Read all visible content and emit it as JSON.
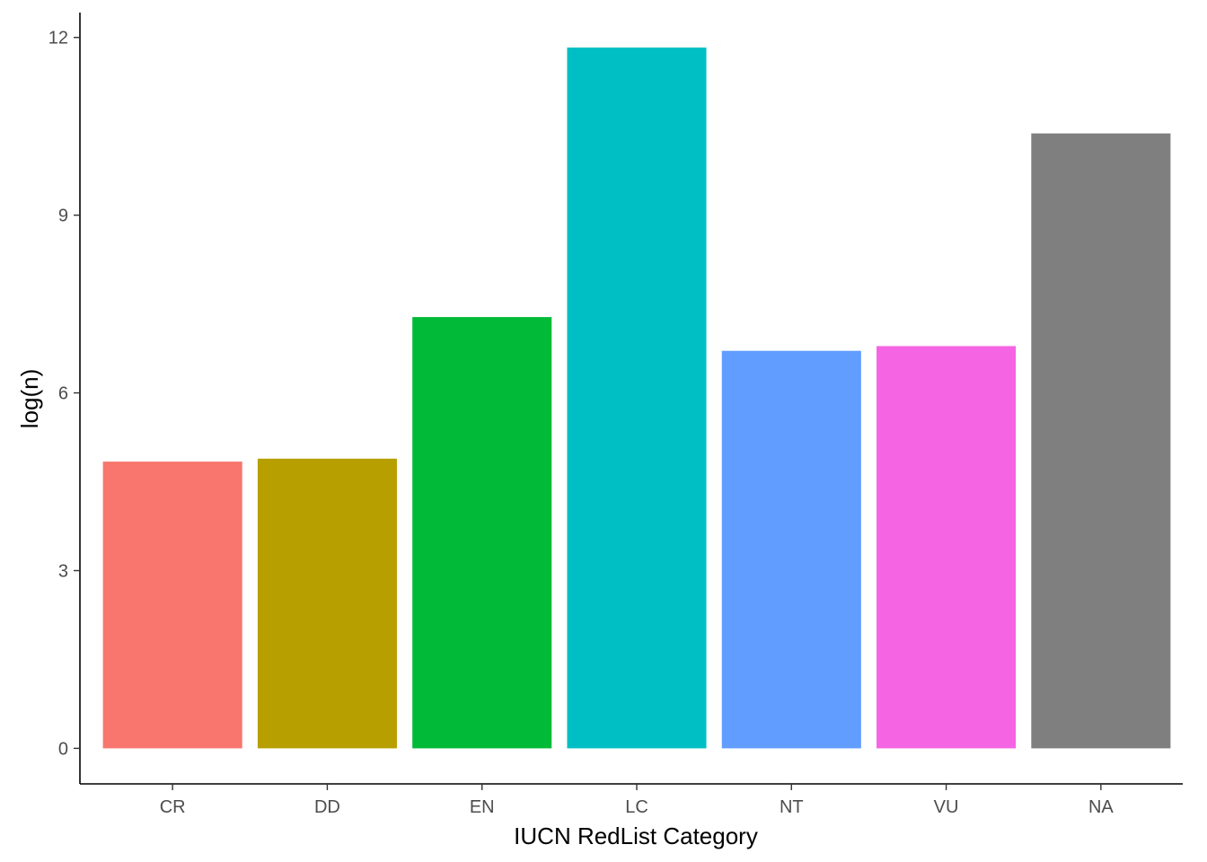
{
  "chart_data": {
    "type": "bar",
    "categories": [
      "CR",
      "DD",
      "EN",
      "LC",
      "NT",
      "VU",
      "NA"
    ],
    "values": [
      4.84,
      4.89,
      7.28,
      11.83,
      6.71,
      6.79,
      10.38
    ],
    "colors": [
      "#F8766D",
      "#B79F00",
      "#00BA38",
      "#00BFC4",
      "#619CFF",
      "#F564E3",
      "#7F7F7F"
    ],
    "xlabel": "IUCN RedList Category",
    "ylabel": "log(n)",
    "yticks": [
      0,
      3,
      6,
      9,
      12
    ],
    "ylim": [
      -0.6,
      12.42
    ],
    "grid": false,
    "legend": "none"
  }
}
